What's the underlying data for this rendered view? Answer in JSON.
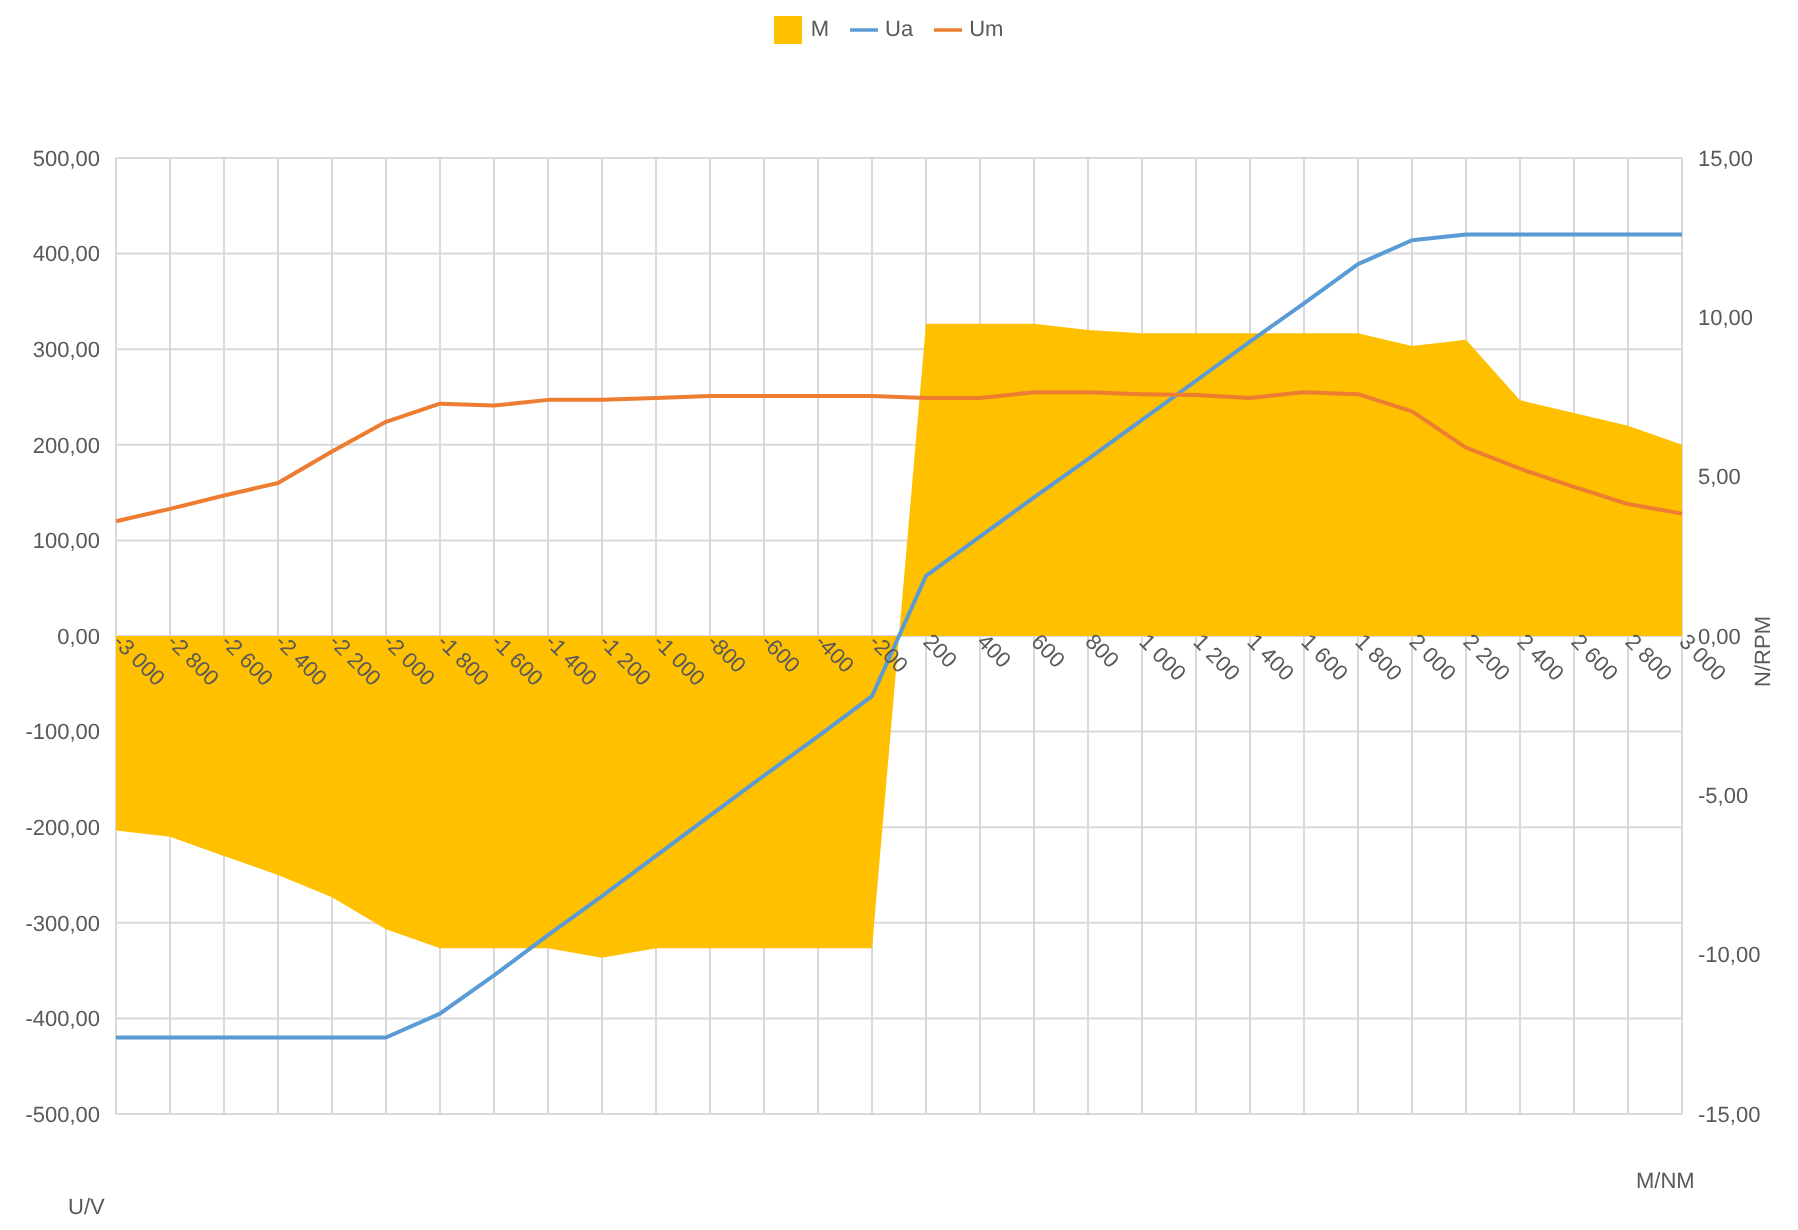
{
  "chart_data": {
    "type": "line",
    "xlabel": "M/NM",
    "ylabel": "U/V",
    "y2label": "N/RPM",
    "categories": [
      "-3 000",
      "-2 800",
      "-2 600",
      "-2 400",
      "-2 200",
      "-2 000",
      "-1 800",
      "-1 600",
      "-1 400",
      "-1 200",
      "-1 000",
      "-800",
      "-600",
      "-400",
      "-200",
      "200",
      "400",
      "600",
      "800",
      "1 000",
      "1 200",
      "1 400",
      "1 600",
      "1 800",
      "2 000",
      "2 200",
      "2 400",
      "2 600",
      "2 800",
      "3 000"
    ],
    "series": [
      {
        "name": "M",
        "type": "area",
        "axis": "y2",
        "color": "#ffc000",
        "values": [
          -6.1,
          -6.3,
          -6.9,
          -7.5,
          -8.2,
          -9.2,
          -9.8,
          -9.8,
          -9.8,
          -10.1,
          -9.8,
          -9.8,
          -9.8,
          -9.8,
          -9.8,
          9.8,
          9.8,
          9.8,
          9.6,
          9.5,
          9.5,
          9.5,
          9.5,
          9.5,
          9.1,
          9.3,
          7.4,
          7.0,
          6.6,
          6.0
        ]
      },
      {
        "name": "Ua",
        "color": "#5b9bd5",
        "values": [
          -420,
          -420,
          -420,
          -420,
          -420,
          -420,
          -395,
          -355,
          -313,
          -272,
          -230,
          -188,
          -146,
          -105,
          -63,
          63,
          104,
          145,
          185,
          226,
          267,
          308,
          348,
          389,
          414,
          420,
          420,
          420,
          420,
          420
        ]
      },
      {
        "name": "Um",
        "color": "#ed7d31",
        "values": [
          120,
          133,
          147,
          160,
          193,
          224,
          243,
          241,
          247,
          247,
          249,
          251,
          251,
          251,
          251,
          249,
          249,
          255,
          255,
          253,
          252,
          249,
          255,
          253,
          235,
          197,
          175,
          156,
          138,
          128
        ]
      }
    ],
    "ylim": [
      -500,
      500
    ],
    "yticks": [
      {
        "value": -500,
        "label": "-500,00"
      },
      {
        "value": -400,
        "label": "-400,00"
      },
      {
        "value": -300,
        "label": "-300,00"
      },
      {
        "value": -200,
        "label": "-200,00"
      },
      {
        "value": -100,
        "label": "-100,00"
      },
      {
        "value": 0,
        "label": "0,00"
      },
      {
        "value": 100,
        "label": "100,00"
      },
      {
        "value": 200,
        "label": "200,00"
      },
      {
        "value": 300,
        "label": "300,00"
      },
      {
        "value": 400,
        "label": "400,00"
      },
      {
        "value": 500,
        "label": "500,00"
      }
    ],
    "y2lim": [
      -15,
      15
    ],
    "y2ticks": [
      {
        "value": -15,
        "label": "-15,00"
      },
      {
        "value": -10,
        "label": "-10,00"
      },
      {
        "value": -5,
        "label": "-5,00"
      },
      {
        "value": 0,
        "label": "0,00"
      },
      {
        "value": 5,
        "label": "5,00"
      },
      {
        "value": 10,
        "label": "10,00"
      },
      {
        "value": 15,
        "label": "15,00"
      }
    ],
    "grid": true,
    "legend": "top",
    "marker": "none",
    "line_style": "solid"
  }
}
